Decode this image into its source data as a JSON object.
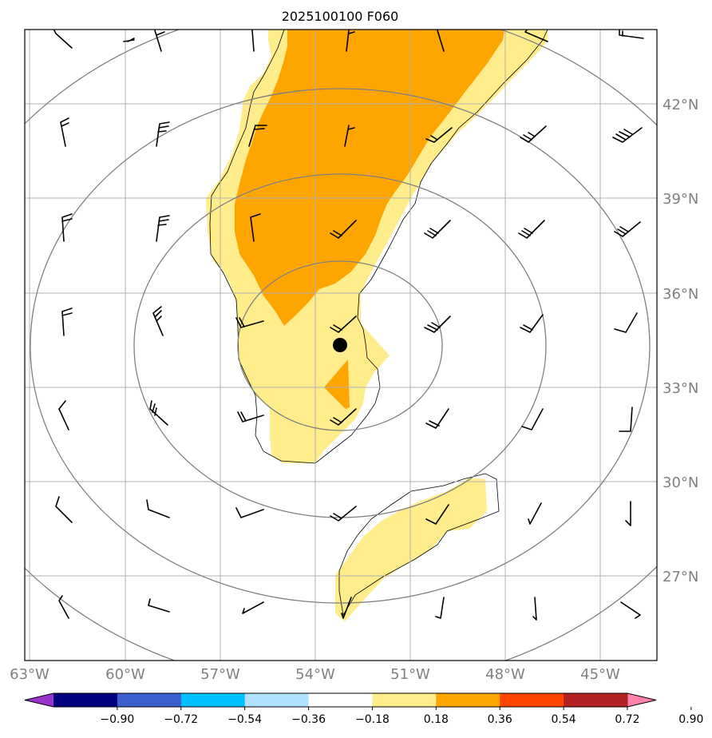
{
  "title": "2025100100 F060",
  "map": {
    "lon_labels": [
      "63°W",
      "60°W",
      "57°W",
      "54°W",
      "51°W",
      "48°W",
      "45°W"
    ],
    "lat_labels": [
      "42°N",
      "39°N",
      "36°N",
      "33°N",
      "30°N",
      "27°N"
    ],
    "storm_center": "storm center marker"
  },
  "colorbar": {
    "tick_labels": [
      "−0.90",
      "−0.72",
      "−0.54",
      "−0.36",
      "−0.18",
      "0.18",
      "0.36",
      "0.54",
      "0.72",
      "0.90"
    ],
    "colors": [
      "#9933cc",
      "#000080",
      "#3a5fcd",
      "#00bfff",
      "#b0e2ff",
      "#ffffff",
      "#ffec8b",
      "#ffa500",
      "#ff4500",
      "#b22222",
      "#ff82ab"
    ],
    "min_extend_color": "#9933cc",
    "max_extend_color": "#ff82ab"
  },
  "colors": {
    "grid": "#b0b0b0",
    "range_rings": "#808080",
    "label_gray": "#808080",
    "fill_low": "#ffec8b",
    "fill_high": "#ffa500"
  }
}
